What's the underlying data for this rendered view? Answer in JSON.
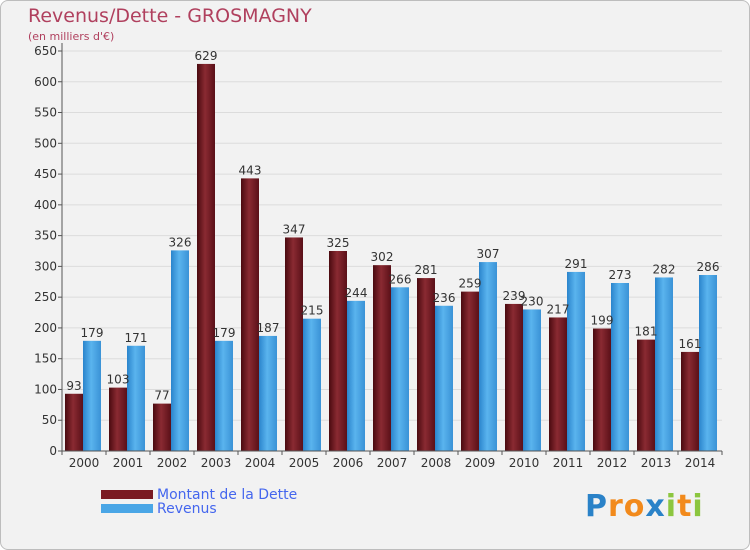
{
  "title": "Revenus/Dette - GROSMAGNY",
  "subtitle": "(en milliers d'€)",
  "legend": {
    "debt_label": "Montant de la Dette",
    "revenue_label": "Revenus"
  },
  "logo": {
    "text": "Proxiti",
    "letters": [
      "P",
      "r",
      "o",
      "x",
      "i",
      "t",
      "i"
    ],
    "colors": [
      "#2a82c8",
      "#f28a1c",
      "#f28a1c",
      "#2a82c8",
      "#8cc63f",
      "#f28a1c",
      "#8cc63f"
    ]
  },
  "colors": {
    "debt": "#7a1a22",
    "debt_dark": "#4a0a10",
    "revenue": "#4aa6e6",
    "revenue_dark": "#1d74bd",
    "text": "#333333",
    "grid": "#dcdcdc"
  },
  "chart_data": {
    "type": "bar",
    "title": "Revenus/Dette - GROSMAGNY",
    "ylabel": "(en milliers d'€)",
    "xlabel": "",
    "ylim": [
      0,
      650
    ],
    "yticks": [
      0,
      50,
      100,
      150,
      200,
      250,
      300,
      350,
      400,
      450,
      500,
      550,
      600,
      650
    ],
    "grid": true,
    "legend_position": "bottom-left",
    "categories": [
      "2000",
      "2001",
      "2002",
      "2003",
      "2004",
      "2005",
      "2006",
      "2007",
      "2008",
      "2009",
      "2010",
      "2011",
      "2012",
      "2013",
      "2014"
    ],
    "series": [
      {
        "name": "Montant de la Dette",
        "values": [
          93,
          103,
          77,
          629,
          443,
          347,
          325,
          302,
          281,
          259,
          239,
          217,
          199,
          181,
          161
        ]
      },
      {
        "name": "Revenus",
        "values": [
          179,
          171,
          326,
          179,
          187,
          215,
          244,
          266,
          236,
          307,
          230,
          291,
          273,
          282,
          286
        ]
      }
    ]
  }
}
